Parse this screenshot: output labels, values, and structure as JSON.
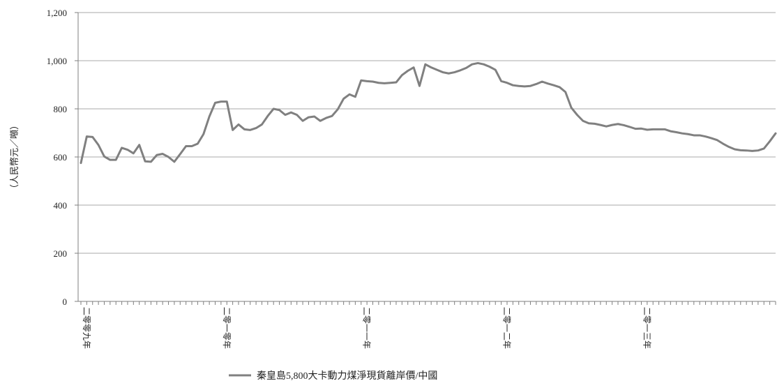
{
  "chart_data": {
    "type": "line",
    "ylabel": "（人民幣元／噸）",
    "ylim": [
      0,
      1200
    ],
    "yticks": [
      0,
      200,
      400,
      600,
      800,
      1000,
      1200
    ],
    "ytick_labels": [
      "0",
      "200",
      "400",
      "600",
      "800",
      "1,000",
      "1,200"
    ],
    "grid": true,
    "legend_position": "bottom",
    "category_labels": [
      {
        "index": 0,
        "label": "二零零九年"
      },
      {
        "index": 24,
        "label": "二零一零年"
      },
      {
        "index": 48,
        "label": "二零一一年"
      },
      {
        "index": 72,
        "label": "二零一二年"
      },
      {
        "index": 96,
        "label": "二零一三年"
      }
    ],
    "series": [
      {
        "name": "秦皇島5,800大卡動力煤淨現貨離岸價/中國",
        "color": "#808080",
        "values": [
          575,
          685,
          683,
          650,
          602,
          588,
          588,
          638,
          630,
          615,
          650,
          582,
          580,
          608,
          613,
          600,
          580,
          612,
          645,
          645,
          655,
          695,
          768,
          825,
          830,
          830,
          712,
          735,
          715,
          712,
          720,
          735,
          770,
          800,
          795,
          775,
          785,
          775,
          750,
          765,
          768,
          750,
          762,
          770,
          798,
          842,
          860,
          850,
          918,
          915,
          913,
          908,
          906,
          908,
          910,
          940,
          958,
          972,
          895,
          985,
          972,
          962,
          952,
          947,
          952,
          960,
          970,
          985,
          990,
          985,
          975,
          962,
          915,
          908,
          898,
          895,
          893,
          895,
          903,
          913,
          905,
          898,
          890,
          870,
          805,
          775,
          750,
          740,
          738,
          733,
          727,
          733,
          737,
          732,
          725,
          717,
          718,
          713,
          715,
          715,
          715,
          707,
          703,
          698,
          695,
          690,
          690,
          685,
          678,
          670,
          655,
          642,
          632,
          628,
          627,
          625,
          627,
          635,
          665,
          698
        ]
      }
    ]
  }
}
